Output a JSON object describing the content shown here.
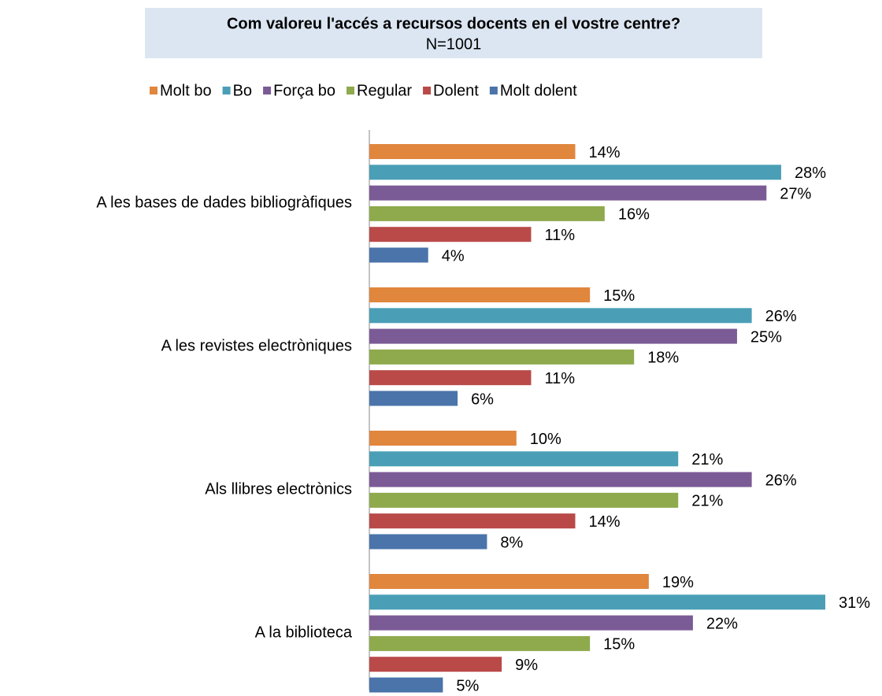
{
  "chart_data": {
    "type": "bar",
    "orientation": "horizontal",
    "title": "Com valoreu l'accés a recursos docents en el vostre centre?",
    "subtitle": "N=1001",
    "categories": [
      "A les bases de dades bibliogràfiques",
      "A les revistes electròniques",
      "Als llibres electrònics",
      "A la biblioteca"
    ],
    "series": [
      {
        "name": "Molt bo",
        "color": "#e0863d",
        "values": [
          14,
          15,
          10,
          19
        ],
        "value_labels": [
          "14%",
          "15%",
          "10%",
          "19%"
        ]
      },
      {
        "name": "Bo",
        "color": "#4a9fb6",
        "values": [
          28,
          26,
          21,
          31
        ],
        "value_labels": [
          "28%",
          "26%",
          "21%",
          "31%"
        ]
      },
      {
        "name": "Força bo",
        "color": "#7b5b96",
        "values": [
          27,
          25,
          26,
          22
        ],
        "value_labels": [
          "27%",
          "25%",
          "26%",
          "22%"
        ]
      },
      {
        "name": "Regular",
        "color": "#8eaa4d",
        "values": [
          16,
          18,
          21,
          15
        ],
        "value_labels": [
          "16%",
          "18%",
          "21%",
          "15%"
        ]
      },
      {
        "name": "Dolent",
        "color": "#b94a48",
        "values": [
          11,
          11,
          14,
          9
        ],
        "value_labels": [
          "11%",
          "11%",
          "14%",
          "9%"
        ]
      },
      {
        "name": "Molt dolent",
        "color": "#4a74aa",
        "values": [
          4,
          6,
          8,
          5
        ],
        "value_labels": [
          "4%",
          "6%",
          "8%",
          "5%"
        ]
      }
    ],
    "legend": "top"
  }
}
